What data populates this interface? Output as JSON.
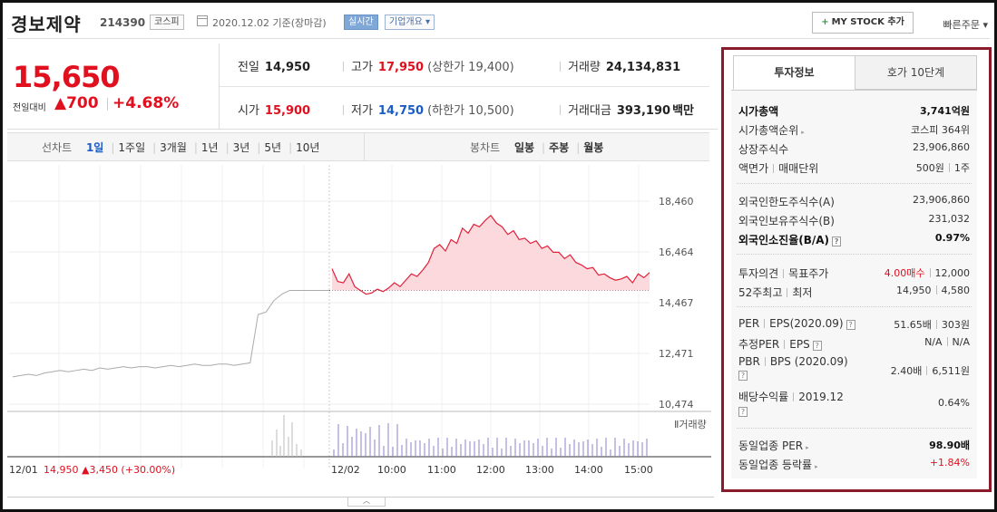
{
  "header": {
    "name": "경보제약",
    "code": "214390",
    "market_badge": "코스피",
    "date": "2020.12.02 기준(장마감)",
    "live_badge": "실시간",
    "info_badge": "기업개요",
    "mystock_btn": "MY STOCK 추가",
    "quick_order": "빠른주문"
  },
  "price": {
    "current": "15,650",
    "prev_label": "전일대비",
    "change": "▲700",
    "change_pct": "+4.68%"
  },
  "summary": {
    "prev_close_label": "전일",
    "prev_close": "14,950",
    "high_label": "고가",
    "high": "17,950",
    "upper_limit": "(상한가 19,400)",
    "volume_label": "거래량",
    "volume": "24,134,831",
    "open_label": "시가",
    "open": "15,900",
    "low_label": "저가",
    "low": "14,750",
    "lower_limit": "(하한가 10,500)",
    "amount_label": "거래대금",
    "amount": "393,190",
    "amount_unit": "백만"
  },
  "chart_tabs": {
    "line_title": "선차트",
    "periods": [
      "1일",
      "1주일",
      "3개월",
      "1년",
      "3년",
      "5년",
      "10년"
    ],
    "active": "1일",
    "candle_title": "봉차트",
    "candles": [
      "일봉",
      "주봉",
      "월봉"
    ]
  },
  "chart_data": {
    "type": "line",
    "y_ticks": [
      "18,460",
      "16,464",
      "14,467",
      "12,471",
      "10,474"
    ],
    "ylim": [
      10474,
      18460
    ],
    "x_ticks_prev": [
      "12/01"
    ],
    "x_ticks": [
      "12/02",
      "10:00",
      "11:00",
      "12:00",
      "13:00",
      "14:00",
      "15:00"
    ],
    "volume_label": "거래량",
    "prev_day_summary": "12/01",
    "prev_day_price": "14,950",
    "prev_day_change": "▲3,450",
    "prev_day_pct": "(+30.00%)",
    "reference_price": 14950,
    "series": [
      {
        "values": [
          11550,
          11600,
          11650,
          11600,
          11700,
          11750,
          11800,
          11750,
          11800,
          11850,
          11800,
          11900,
          11850,
          11900,
          11950,
          11900,
          11950,
          11950,
          11900,
          11950,
          12000,
          11950,
          12000,
          12050,
          12000,
          12000,
          12050,
          12050,
          12000,
          12050,
          12100,
          14000,
          14100,
          14550,
          14800,
          14950,
          14950,
          14950,
          14950,
          14950,
          14950
        ]
      },
      {
        "values": [
          15800,
          15300,
          15250,
          15600,
          15100,
          14950,
          14800,
          14850,
          15000,
          14900,
          15050,
          15250,
          15100,
          15350,
          15600,
          15500,
          15750,
          16050,
          16600,
          16750,
          16500,
          16950,
          16800,
          17400,
          17200,
          17550,
          17450,
          17700,
          17900,
          17600,
          17450,
          17150,
          17300,
          16950,
          17000,
          16800,
          16900,
          16600,
          16700,
          16450,
          16450,
          16200,
          16350,
          16050,
          15950,
          15800,
          15850,
          15550,
          15600,
          15450,
          15350,
          15400,
          15500,
          15250,
          15600,
          15450,
          15650
        ]
      }
    ]
  },
  "panel": {
    "tab_active": "투자정보",
    "tab_other": "호가 10단계",
    "market_cap_label": "시가총액",
    "market_cap": "3,741억원",
    "cap_rank_label": "시가총액순위",
    "cap_rank": "코스피 364위",
    "shares_label": "상장주식수",
    "shares": "23,906,860",
    "par_label": "액면가",
    "trade_unit_label": "매매단위",
    "par": "500원",
    "trade_unit": "1주",
    "foreign_limit_label": "외국인한도주식수(A)",
    "foreign_limit": "23,906,860",
    "foreign_hold_label": "외국인보유주식수(B)",
    "foreign_hold": "231,032",
    "foreign_ratio_label": "외국인소진율(B/A)",
    "foreign_ratio": "0.97%",
    "opinion_label": "투자의견",
    "target_label": "목표주가",
    "opinion": "4.00매수",
    "target": "12,000",
    "high52_label": "52주최고",
    "low52_label": "최저",
    "high52": "14,950",
    "low52": "4,580",
    "per_label": "PER",
    "eps_label": "EPS(2020.09)",
    "per": "51.65배",
    "eps": "303원",
    "est_per_label": "추정PER",
    "est_eps_label": "EPS",
    "est_per": "N/A",
    "est_eps": "N/A",
    "pbr_label": "PBR",
    "bps_label": "BPS (2020.09)",
    "pbr": "2.40배",
    "bps": "6,511원",
    "div_label": "배당수익률",
    "div_date": "2019.12",
    "div": "0.64%",
    "sector_per_label": "동일업종 PER",
    "sector_per": "98.90배",
    "sector_rate_label": "동일업종 등락률",
    "sector_rate": "+1.84%"
  }
}
